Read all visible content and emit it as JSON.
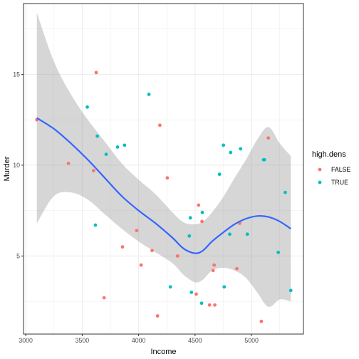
{
  "chart_data": {
    "type": "scatter",
    "xlabel": "Income",
    "ylabel": "Murder",
    "xlim": [
      2980,
      5460
    ],
    "ylim": [
      0.7,
      18.9
    ],
    "x_ticks": [
      3000,
      3500,
      4000,
      4500,
      5000
    ],
    "y_ticks": [
      5,
      10,
      15
    ],
    "legend_title": "high.dens",
    "legend_placement": "right",
    "grid": true,
    "series": [
      {
        "name": "FALSE",
        "color": "#F8766D",
        "points": [
          [
            3098,
            12.5
          ],
          [
            3378,
            10.1
          ],
          [
            3601,
            9.7
          ],
          [
            3624,
            15.1
          ],
          [
            3694,
            2.7
          ],
          [
            3983,
            6.4
          ],
          [
            4022,
            4.5
          ],
          [
            4119,
            5.3
          ],
          [
            4167,
            1.7
          ],
          [
            4188,
            12.2
          ],
          [
            4254,
            9.3
          ],
          [
            4345,
            5.0
          ],
          [
            4510,
            2.9
          ],
          [
            4531,
            7.8
          ],
          [
            4561,
            6.9
          ],
          [
            4628,
            2.3
          ],
          [
            4660,
            4.2
          ],
          [
            4669,
            4.5
          ],
          [
            4675,
            2.3
          ],
          [
            4870,
            4.3
          ],
          [
            4895,
            6.8
          ],
          [
            5087,
            1.4
          ],
          [
            5149,
            11.5
          ],
          [
            3857,
            5.5
          ]
        ]
      },
      {
        "name": "TRUE",
        "color": "#00BFC4",
        "points": [
          [
            3545,
            13.2
          ],
          [
            3617,
            6.7
          ],
          [
            3634,
            11.6
          ],
          [
            3712,
            10.6
          ],
          [
            3813,
            11.0
          ],
          [
            3875,
            11.1
          ],
          [
            4091,
            13.9
          ],
          [
            4281,
            3.3
          ],
          [
            4449,
            6.1
          ],
          [
            4458,
            7.1
          ],
          [
            4468,
            3.0
          ],
          [
            4558,
            2.4
          ],
          [
            4564,
            7.4
          ],
          [
            4716,
            9.5
          ],
          [
            4751,
            11.1
          ],
          [
            4758,
            3.3
          ],
          [
            4807,
            6.2
          ],
          [
            4815,
            10.7
          ],
          [
            4903,
            10.9
          ],
          [
            4963,
            6.2
          ],
          [
            5107,
            10.3
          ],
          [
            5114,
            10.3
          ],
          [
            5237,
            5.2
          ],
          [
            5299,
            8.5
          ],
          [
            5348,
            3.1
          ]
        ]
      }
    ],
    "smooth": {
      "color": "#3366FF",
      "x": [
        3098,
        3250,
        3400,
        3550,
        3700,
        3850,
        4000,
        4150,
        4300,
        4400,
        4500,
        4570,
        4650,
        4750,
        4850,
        4950,
        5050,
        5150,
        5250,
        5348
      ],
      "y": [
        12.6,
        12.0,
        11.2,
        10.3,
        9.3,
        8.3,
        7.5,
        6.8,
        6.0,
        5.4,
        5.15,
        5.3,
        5.8,
        6.3,
        6.75,
        7.05,
        7.2,
        7.15,
        6.9,
        6.5
      ],
      "ci_low": [
        6.8,
        8.3,
        8.5,
        8.1,
        7.3,
        6.5,
        5.8,
        5.2,
        4.6,
        3.95,
        3.55,
        3.7,
        4.2,
        4.35,
        4.2,
        3.8,
        3.0,
        2.2,
        2.6,
        2.5
      ],
      "ci_high": [
        18.4,
        15.7,
        13.9,
        12.5,
        11.3,
        10.1,
        9.2,
        8.4,
        7.4,
        6.85,
        6.75,
        6.9,
        7.4,
        8.25,
        9.3,
        10.3,
        11.4,
        12.1,
        11.2,
        10.5
      ]
    }
  }
}
